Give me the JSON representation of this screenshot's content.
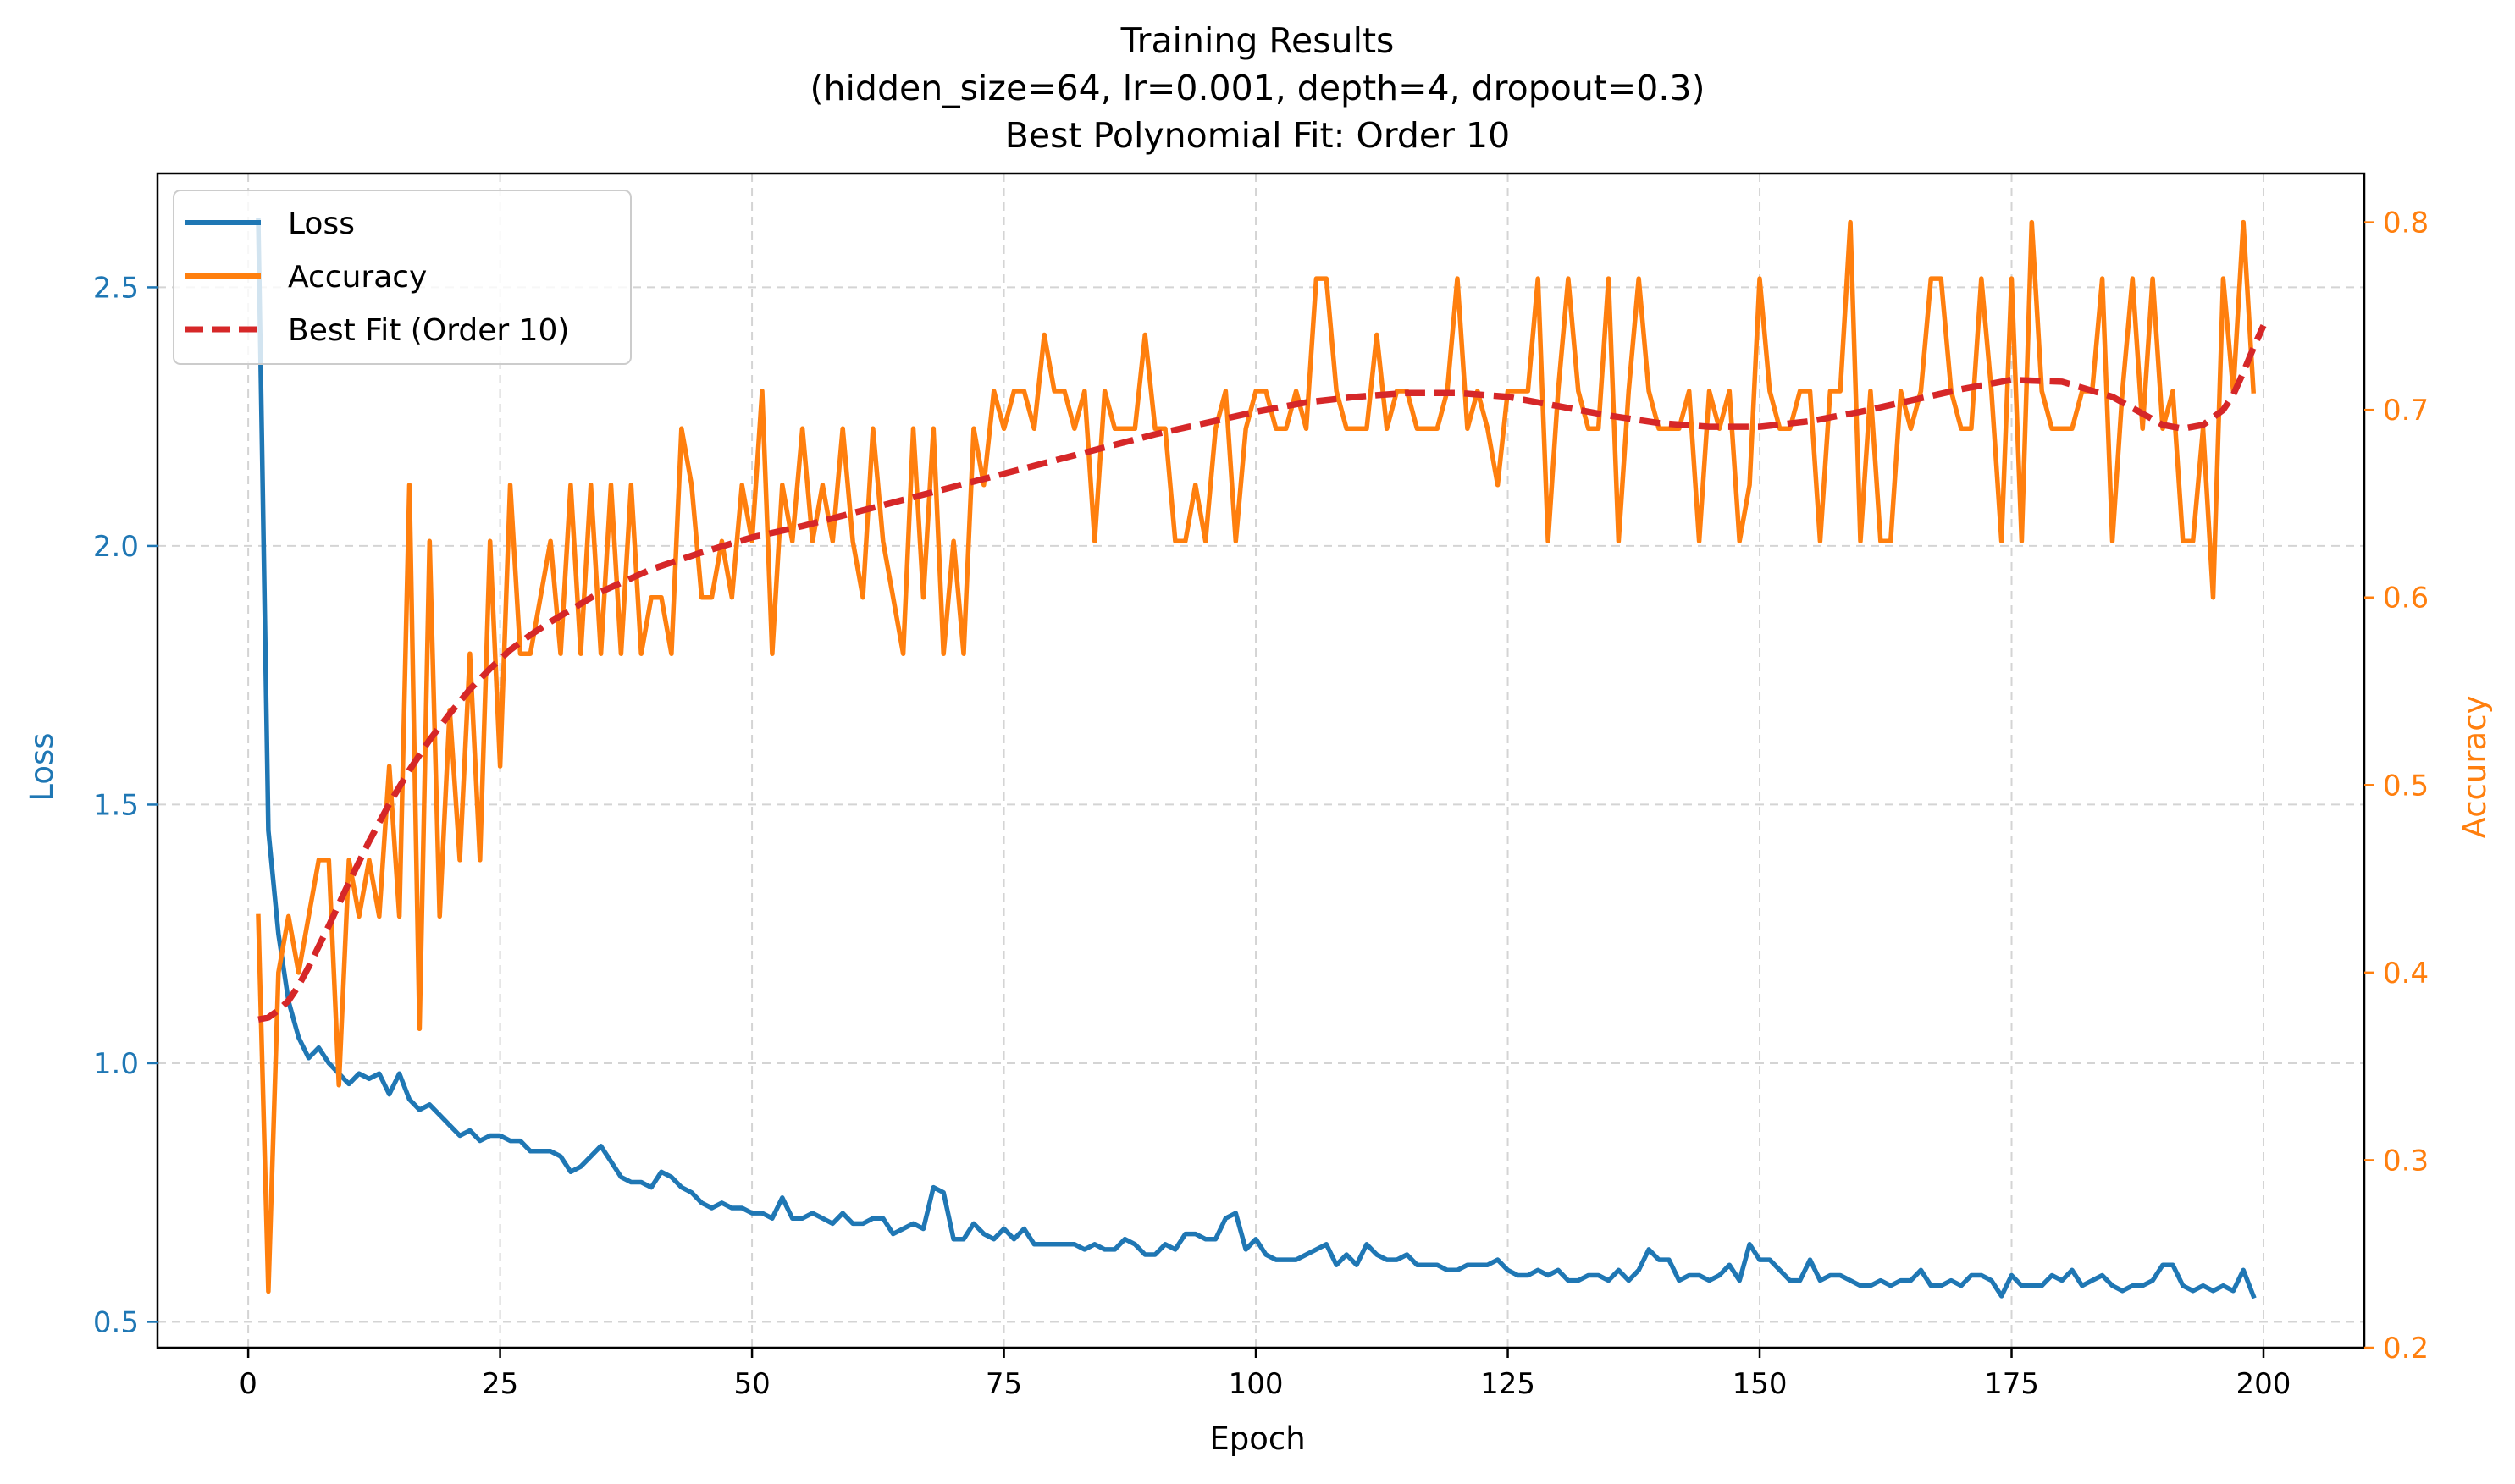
{
  "chart_data": {
    "type": "line",
    "title_lines": [
      "Training Results",
      "(hidden_size=64, lr=0.001, depth=4, dropout=0.3)",
      "Best Polynomial Fit: Order 10"
    ],
    "xlabel": "Epoch",
    "ylabel_left": "Loss",
    "ylabel_right": "Accuracy",
    "xlim": [
      -9,
      210
    ],
    "ylim_left": [
      0.45,
      2.72
    ],
    "ylim_right": [
      0.2,
      0.826
    ],
    "xticks": [
      0,
      25,
      50,
      75,
      100,
      125,
      150,
      175,
      200
    ],
    "xtick_labels": [
      "0",
      "25",
      "50",
      "75",
      "100",
      "125",
      "150",
      "175",
      "200"
    ],
    "yticks_left": [
      0.5,
      1.0,
      1.5,
      2.0,
      2.5
    ],
    "ytick_labels_left": [
      "0.5",
      "1.0",
      "1.5",
      "2.0",
      "2.5"
    ],
    "yticks_right": [
      0.2,
      0.3,
      0.4,
      0.5,
      0.6,
      0.7,
      0.8
    ],
    "ytick_labels_right": [
      "0.2",
      "0.3",
      "0.4",
      "0.5",
      "0.6",
      "0.7",
      "0.8"
    ],
    "grid": true,
    "legend_position": "upper-left",
    "colors": {
      "loss": "#1f77b4",
      "accuracy": "#ff7f0e",
      "fit": "#d62728"
    },
    "series": [
      {
        "name": "Loss",
        "axis": "left",
        "x_start": 1,
        "values": [
          2.63,
          1.45,
          1.25,
          1.12,
          1.05,
          1.01,
          1.03,
          1.0,
          0.98,
          0.96,
          0.98,
          0.97,
          0.98,
          0.94,
          0.98,
          0.93,
          0.91,
          0.92,
          0.9,
          0.88,
          0.86,
          0.87,
          0.85,
          0.86,
          0.86,
          0.85,
          0.85,
          0.83,
          0.83,
          0.83,
          0.82,
          0.79,
          0.8,
          0.82,
          0.84,
          0.81,
          0.78,
          0.77,
          0.77,
          0.76,
          0.79,
          0.78,
          0.76,
          0.75,
          0.73,
          0.72,
          0.73,
          0.72,
          0.72,
          0.71,
          0.71,
          0.7,
          0.74,
          0.7,
          0.7,
          0.71,
          0.7,
          0.69,
          0.71,
          0.69,
          0.69,
          0.7,
          0.7,
          0.67,
          0.68,
          0.69,
          0.68,
          0.76,
          0.75,
          0.66,
          0.66,
          0.69,
          0.67,
          0.66,
          0.68,
          0.66,
          0.68,
          0.65,
          0.65,
          0.65,
          0.65,
          0.65,
          0.64,
          0.65,
          0.64,
          0.64,
          0.66,
          0.65,
          0.63,
          0.63,
          0.65,
          0.64,
          0.67,
          0.67,
          0.66,
          0.66,
          0.7,
          0.71,
          0.64,
          0.66,
          0.63,
          0.62,
          0.62,
          0.62,
          0.63,
          0.64,
          0.65,
          0.61,
          0.63,
          0.61,
          0.65,
          0.63,
          0.62,
          0.62,
          0.63,
          0.61,
          0.61,
          0.61,
          0.6,
          0.6,
          0.61,
          0.61,
          0.61,
          0.62,
          0.6,
          0.59,
          0.59,
          0.6,
          0.59,
          0.6,
          0.58,
          0.58,
          0.59,
          0.59,
          0.58,
          0.6,
          0.58,
          0.6,
          0.64,
          0.62,
          0.62,
          0.58,
          0.59,
          0.59,
          0.58,
          0.59,
          0.61,
          0.58,
          0.65,
          0.62,
          0.62,
          0.6,
          0.58,
          0.58,
          0.62,
          0.58,
          0.59,
          0.59,
          0.58,
          0.57,
          0.57,
          0.58,
          0.57,
          0.58,
          0.58,
          0.6,
          0.57,
          0.57,
          0.58,
          0.57,
          0.59,
          0.59,
          0.58,
          0.55,
          0.59,
          0.57,
          0.57,
          0.57,
          0.59,
          0.58,
          0.6,
          0.57,
          0.58,
          0.59,
          0.57,
          0.56,
          0.57,
          0.57,
          0.58,
          0.61,
          0.61,
          0.57,
          0.56,
          0.57,
          0.56,
          0.57,
          0.56,
          0.6,
          0.55
        ]
      },
      {
        "name": "Accuracy",
        "axis": "right",
        "x_start": 1,
        "values": [
          0.43,
          0.23,
          0.4,
          0.43,
          0.4,
          0.43,
          0.46,
          0.46,
          0.34,
          0.46,
          0.43,
          0.46,
          0.43,
          0.51,
          0.43,
          0.66,
          0.37,
          0.63,
          0.43,
          0.54,
          0.46,
          0.57,
          0.46,
          0.63,
          0.51,
          0.66,
          0.57,
          0.57,
          0.6,
          0.63,
          0.57,
          0.66,
          0.57,
          0.66,
          0.57,
          0.66,
          0.57,
          0.66,
          0.57,
          0.6,
          0.6,
          0.57,
          0.69,
          0.66,
          0.6,
          0.6,
          0.63,
          0.6,
          0.66,
          0.63,
          0.71,
          0.57,
          0.66,
          0.63,
          0.69,
          0.63,
          0.66,
          0.63,
          0.69,
          0.63,
          0.6,
          0.69,
          0.63,
          0.6,
          0.57,
          0.69,
          0.6,
          0.69,
          0.57,
          0.63,
          0.57,
          0.69,
          0.66,
          0.71,
          0.69,
          0.71,
          0.71,
          0.69,
          0.74,
          0.71,
          0.71,
          0.69,
          0.71,
          0.63,
          0.71,
          0.69,
          0.69,
          0.69,
          0.74,
          0.69,
          0.69,
          0.63,
          0.63,
          0.66,
          0.63,
          0.69,
          0.71,
          0.63,
          0.69,
          0.71,
          0.71,
          0.69,
          0.69,
          0.71,
          0.69,
          0.77,
          0.77,
          0.71,
          0.69,
          0.69,
          0.69,
          0.74,
          0.69,
          0.71,
          0.71,
          0.69,
          0.69,
          0.69,
          0.71,
          0.77,
          0.69,
          0.71,
          0.69,
          0.66,
          0.71,
          0.71,
          0.71,
          0.77,
          0.63,
          0.71,
          0.77,
          0.71,
          0.69,
          0.69,
          0.77,
          0.63,
          0.71,
          0.77,
          0.71,
          0.69,
          0.69,
          0.69,
          0.71,
          0.63,
          0.71,
          0.69,
          0.71,
          0.63,
          0.66,
          0.77,
          0.71,
          0.69,
          0.69,
          0.71,
          0.71,
          0.63,
          0.71,
          0.71,
          0.8,
          0.63,
          0.71,
          0.63,
          0.63,
          0.71,
          0.69,
          0.71,
          0.77,
          0.77,
          0.71,
          0.69,
          0.69,
          0.77,
          0.71,
          0.63,
          0.77,
          0.63,
          0.8,
          0.71,
          0.69,
          0.69,
          0.69,
          0.71,
          0.71,
          0.77,
          0.63,
          0.71,
          0.77,
          0.69,
          0.77,
          0.69,
          0.71,
          0.63,
          0.63,
          0.69,
          0.6,
          0.77,
          0.71,
          0.8,
          0.71
        ]
      },
      {
        "name": "Best Fit (Order 10)",
        "axis": "right",
        "style": "dashed",
        "x": [
          1,
          2,
          3,
          4,
          5,
          6,
          7,
          8,
          10,
          12,
          14,
          16,
          18,
          20,
          22,
          24,
          26,
          28,
          30,
          35,
          40,
          45,
          50,
          55,
          60,
          65,
          70,
          75,
          80,
          85,
          90,
          95,
          100,
          105,
          110,
          115,
          120,
          125,
          130,
          135,
          140,
          145,
          150,
          155,
          160,
          165,
          170,
          175,
          180,
          185,
          188,
          190,
          192,
          194,
          196,
          197,
          198,
          199,
          200
        ],
        "values": [
          0.375,
          0.376,
          0.38,
          0.385,
          0.393,
          0.403,
          0.414,
          0.425,
          0.448,
          0.47,
          0.49,
          0.508,
          0.524,
          0.538,
          0.551,
          0.562,
          0.572,
          0.58,
          0.587,
          0.603,
          0.615,
          0.624,
          0.632,
          0.638,
          0.645,
          0.652,
          0.659,
          0.666,
          0.673,
          0.68,
          0.687,
          0.693,
          0.699,
          0.704,
          0.707,
          0.709,
          0.709,
          0.707,
          0.702,
          0.697,
          0.693,
          0.691,
          0.691,
          0.694,
          0.699,
          0.705,
          0.711,
          0.716,
          0.715,
          0.707,
          0.698,
          0.692,
          0.69,
          0.692,
          0.7,
          0.708,
          0.72,
          0.733,
          0.745
        ]
      }
    ]
  }
}
